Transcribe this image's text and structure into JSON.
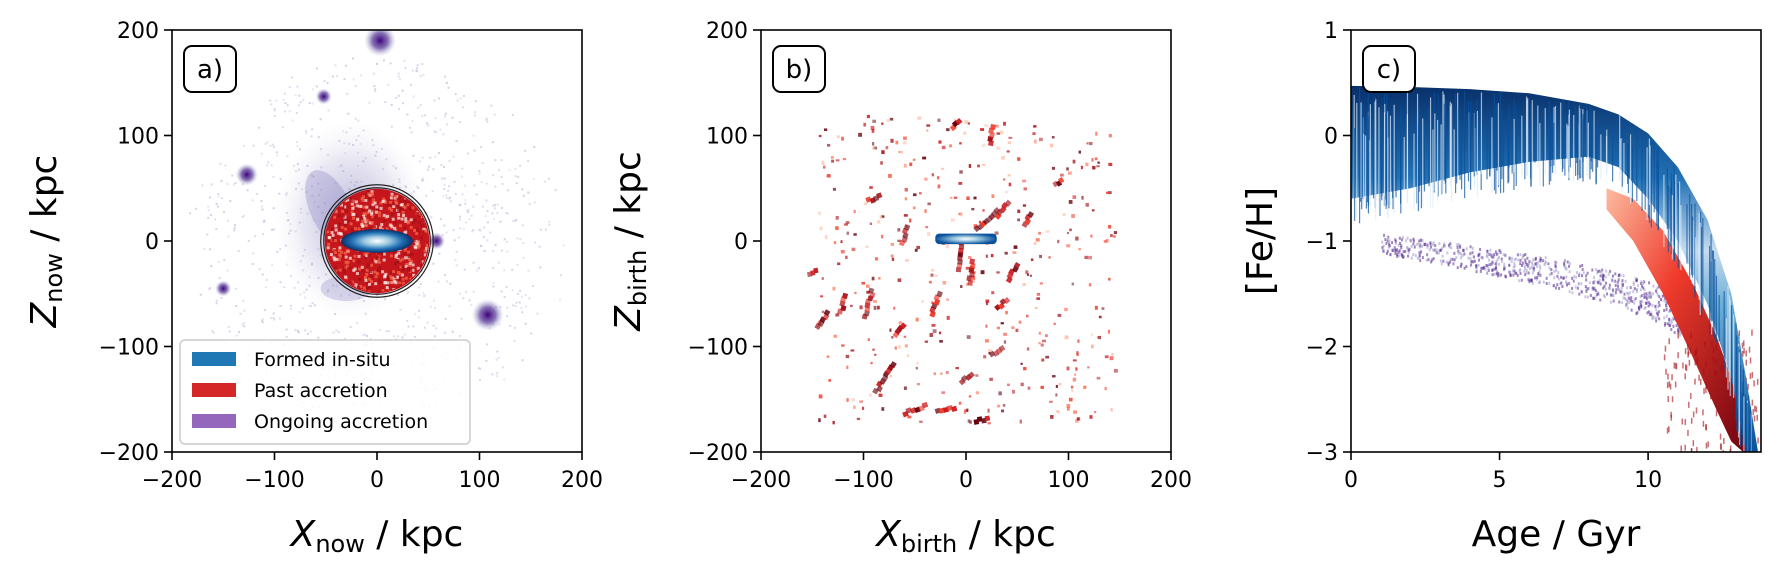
{
  "chart_data": [
    {
      "type": "heatmap",
      "panel_label": "a)",
      "xlabel": {
        "main": "X",
        "sub": "now",
        "rest": " / kpc"
      },
      "ylabel": {
        "main": "Z",
        "sub": "now",
        "rest": " / kpc"
      },
      "xlim": [
        -200,
        200
      ],
      "ylim": [
        -200,
        200
      ],
      "xticks": [
        -200,
        -100,
        0,
        100,
        200
      ],
      "yticks": [
        -200,
        -100,
        0,
        100,
        200
      ],
      "xtick_labels": [
        "−200",
        "−100",
        "0",
        "100",
        "200"
      ],
      "ytick_labels": [
        "−200",
        "−100",
        "0",
        "100",
        "200"
      ],
      "legend": {
        "position": "lower-left",
        "entries": [
          {
            "label": "Formed in-situ",
            "color": "#1f77b4"
          },
          {
            "label": "Past accretion",
            "color": "#d62728"
          },
          {
            "label": "Ongoing accretion",
            "color": "#9467bd"
          }
        ]
      },
      "components": {
        "in_situ": {
          "color": "#1f77b4",
          "disc_center": [
            0,
            0
          ],
          "disc_half_width_kpc": 35,
          "disc_half_height_kpc": 7
        },
        "past_accretion": {
          "color": "#d62728",
          "sphere_radius_kpc": 50
        },
        "ongoing_accretion_satellites": [
          {
            "x": 3,
            "z": 190,
            "strength": 1.0
          },
          {
            "x": 108,
            "z": -70,
            "strength": 1.0
          },
          {
            "x": -127,
            "z": 63,
            "strength": 0.6
          },
          {
            "x": -52,
            "z": 137,
            "strength": 0.35
          },
          {
            "x": -150,
            "z": -45,
            "strength": 0.35
          },
          {
            "x": 58,
            "z": 0,
            "strength": 0.4
          }
        ]
      }
    },
    {
      "type": "heatmap",
      "panel_label": "b)",
      "xlabel": {
        "main": "X",
        "sub": "birth",
        "rest": " / kpc"
      },
      "ylabel": {
        "main": "Z",
        "sub": "birth",
        "rest": " / kpc"
      },
      "xlim": [
        -200,
        200
      ],
      "ylim": [
        -200,
        200
      ],
      "xticks": [
        -200,
        -100,
        0,
        100,
        200
      ],
      "yticks": [
        -200,
        -100,
        0,
        100,
        200
      ],
      "xtick_labels": [
        "−200",
        "−100",
        "0",
        "100",
        "200"
      ],
      "ytick_labels": [
        "−200",
        "−100",
        "0",
        "100",
        "200"
      ],
      "components": {
        "in_situ": {
          "color": "#1f77b4",
          "disc_center": [
            0,
            2
          ],
          "disc_half_width_kpc": 30,
          "disc_half_height_kpc": 5
        },
        "past_accretion_streaks": [
          {
            "x": -95,
            "z": -60,
            "len": 30,
            "angle": 75
          },
          {
            "x": -80,
            "z": -130,
            "len": 35,
            "angle": 60
          },
          {
            "x": -50,
            "z": -160,
            "len": 25,
            "angle": 20
          },
          {
            "x": -20,
            "z": -160,
            "len": 20,
            "angle": 15
          },
          {
            "x": 15,
            "z": -170,
            "len": 15,
            "angle": 10
          },
          {
            "x": -30,
            "z": -60,
            "len": 25,
            "angle": 70
          },
          {
            "x": 20,
            "z": 20,
            "len": 30,
            "angle": 40
          },
          {
            "x": 35,
            "z": 30,
            "len": 20,
            "angle": 50
          },
          {
            "x": -5,
            "z": -15,
            "len": 30,
            "angle": 85
          },
          {
            "x": 5,
            "z": -30,
            "len": 25,
            "angle": 80
          },
          {
            "x": -140,
            "z": -75,
            "len": 20,
            "angle": 60
          },
          {
            "x": -120,
            "z": -60,
            "len": 20,
            "angle": 75
          },
          {
            "x": 45,
            "z": -30,
            "len": 20,
            "angle": 60
          },
          {
            "x": 0,
            "z": -130,
            "len": 15,
            "angle": 40
          },
          {
            "x": 30,
            "z": -105,
            "len": 15,
            "angle": 30
          },
          {
            "x": 25,
            "z": 100,
            "len": 20,
            "angle": 80
          },
          {
            "x": -10,
            "z": 110,
            "len": 12,
            "angle": 40
          },
          {
            "x": -90,
            "z": 40,
            "len": 15,
            "angle": 20
          },
          {
            "x": 60,
            "z": 20,
            "len": 15,
            "angle": 60
          },
          {
            "x": 90,
            "z": 55,
            "len": 10,
            "angle": 30
          },
          {
            "x": -60,
            "z": 5,
            "len": 20,
            "angle": 70
          },
          {
            "x": 35,
            "z": -60,
            "len": 15,
            "angle": 40
          },
          {
            "x": -150,
            "z": -30,
            "len": 10,
            "angle": 10
          },
          {
            "x": -65,
            "z": -85,
            "len": 15,
            "angle": 50
          }
        ]
      }
    },
    {
      "type": "heatmap",
      "panel_label": "c)",
      "xlabel": {
        "main": "",
        "sub": "",
        "rest": "Age / Gyr"
      },
      "ylabel": {
        "main": "",
        "sub": "",
        "rest": "[Fe/H]"
      },
      "xlim": [
        0,
        13.8
      ],
      "ylim": [
        -3,
        1
      ],
      "xticks": [
        0,
        5,
        10
      ],
      "yticks": [
        -3,
        -2,
        -1,
        0,
        1
      ],
      "xtick_labels": [
        "0",
        "5",
        "10"
      ],
      "ytick_labels": [
        "−3",
        "−2",
        "−1",
        "0",
        "1"
      ],
      "components": {
        "in_situ_band": {
          "color": "#1f77b4",
          "ages": [
            0,
            2,
            4,
            6,
            8,
            9,
            10,
            11,
            12,
            12.8,
            13.3,
            13.7
          ],
          "feh_top": [
            0.47,
            0.46,
            0.44,
            0.4,
            0.3,
            0.2,
            0.02,
            -0.3,
            -0.8,
            -1.5,
            -2.3,
            -3.0
          ],
          "feh_bottom": [
            -0.6,
            -0.5,
            -0.35,
            -0.25,
            -0.2,
            -0.3,
            -0.6,
            -1.0,
            -1.6,
            -2.3,
            -3.0,
            -3.0
          ]
        },
        "past_accretion_band": {
          "color": "#d62728",
          "ages": [
            8.6,
            9.5,
            10.5,
            11.5,
            12.3,
            12.8,
            13.2,
            13.6
          ],
          "feh_top": [
            -0.5,
            -0.6,
            -0.9,
            -1.4,
            -1.9,
            -2.3,
            -2.7,
            -3.0
          ],
          "feh_bottom": [
            -0.7,
            -1.0,
            -1.5,
            -2.1,
            -2.6,
            -2.9,
            -3.0,
            -3.0
          ]
        },
        "ongoing_accretion_band": {
          "color": "#9467bd",
          "ages": [
            1,
            3,
            5,
            7,
            9,
            10.5,
            11.5,
            12.3
          ],
          "feh_center": [
            -1.02,
            -1.1,
            -1.2,
            -1.3,
            -1.45,
            -1.6,
            -1.8,
            -2.1
          ]
        }
      }
    }
  ]
}
